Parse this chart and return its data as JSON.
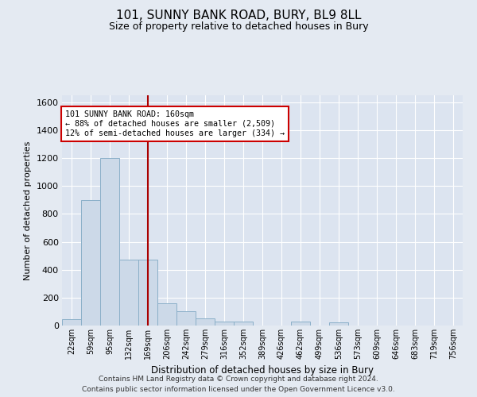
{
  "title1": "101, SUNNY BANK ROAD, BURY, BL9 8LL",
  "title2": "Size of property relative to detached houses in Bury",
  "xlabel": "Distribution of detached houses by size in Bury",
  "ylabel": "Number of detached properties",
  "footer1": "Contains HM Land Registry data © Crown copyright and database right 2024.",
  "footer2": "Contains public sector information licensed under the Open Government Licence v3.0.",
  "bin_labels": [
    "22sqm",
    "59sqm",
    "95sqm",
    "132sqm",
    "169sqm",
    "206sqm",
    "242sqm",
    "279sqm",
    "316sqm",
    "352sqm",
    "389sqm",
    "426sqm",
    "462sqm",
    "499sqm",
    "536sqm",
    "573sqm",
    "609sqm",
    "646sqm",
    "683sqm",
    "719sqm",
    "756sqm"
  ],
  "bar_heights": [
    45,
    900,
    1200,
    470,
    470,
    160,
    100,
    50,
    30,
    30,
    0,
    0,
    30,
    0,
    20,
    0,
    0,
    0,
    0,
    0,
    0
  ],
  "bar_color": "#ccd9e8",
  "bar_edge_color": "#8aafc8",
  "red_line_x": 4.0,
  "annotation_line1": "101 SUNNY BANK ROAD: 160sqm",
  "annotation_line2": "← 88% of detached houses are smaller (2,509)",
  "annotation_line3": "12% of semi-detached houses are larger (334) →",
  "ylim": [
    0,
    1650
  ],
  "yticks": [
    0,
    200,
    400,
    600,
    800,
    1000,
    1200,
    1400,
    1600
  ],
  "background_color": "#e4eaf2",
  "plot_background": "#dce4f0",
  "grid_color": "#ffffff",
  "red_line_color": "#aa0000",
  "annotation_box_facecolor": "#ffffff",
  "annotation_box_edgecolor": "#cc0000"
}
